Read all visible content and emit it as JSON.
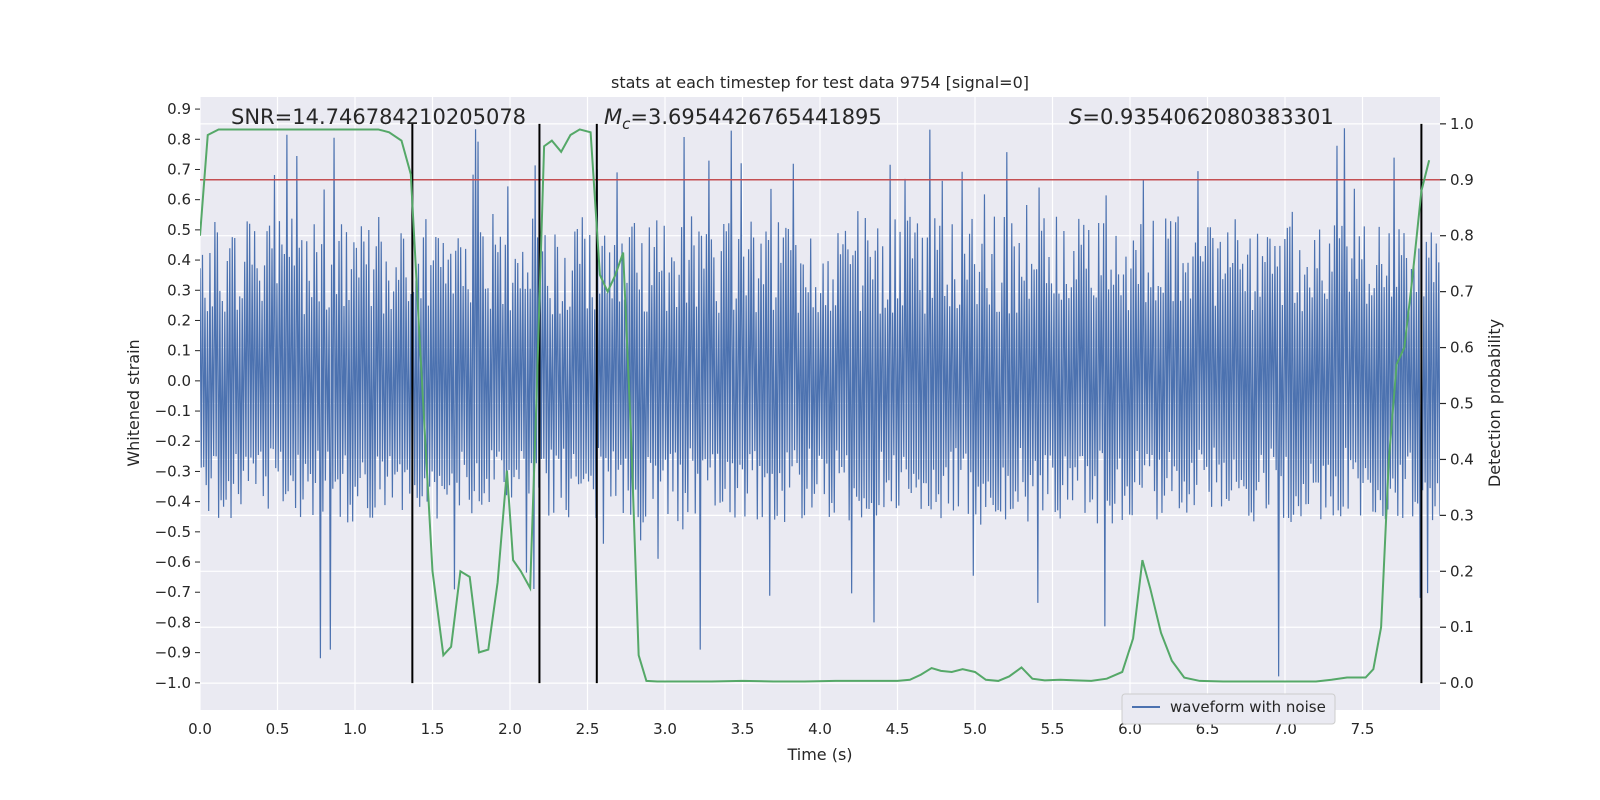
{
  "chart_data": {
    "type": "line",
    "title": "stats at each timestep for test data 9754 [signal=0]",
    "xlabel": "Time (s)",
    "ylabel": "Whitened strain",
    "y2label": "Detection probability",
    "xlim": [
      0.0,
      8.0
    ],
    "ylim": [
      -1.09,
      0.94
    ],
    "y2lim": [
      -0.048,
      1.048
    ],
    "xticks": [
      0.0,
      0.5,
      1.0,
      1.5,
      2.0,
      2.5,
      3.0,
      3.5,
      4.0,
      4.5,
      5.0,
      5.5,
      6.0,
      6.5,
      7.0,
      7.5
    ],
    "yticks": [
      0.9,
      0.8,
      0.7,
      0.6,
      0.5,
      0.4,
      0.3,
      0.2,
      0.1,
      0.0,
      -0.1,
      -0.2,
      -0.3,
      -0.4,
      -0.5,
      -0.6,
      -0.7,
      -0.8,
      -0.9,
      -1.0
    ],
    "y2ticks": [
      1.0,
      0.9,
      0.8,
      0.7,
      0.6,
      0.5,
      0.4,
      0.3,
      0.2,
      0.1,
      0.0
    ],
    "grid": true,
    "legend": {
      "position": "bottom-right",
      "entries": [
        "waveform with noise"
      ]
    },
    "annotations": {
      "snr": "SNR=14.746784210205078",
      "mc_symbol": "M",
      "mc_sub": "c",
      "mc_value": "=3.6954426765441895",
      "s_symbol": "S",
      "s_value": "=0.9354062080383301"
    },
    "threshold_line": {
      "axis": "y2",
      "value": 0.9,
      "color": "#c44e52"
    },
    "vertical_markers": [
      1.37,
      2.19,
      2.56,
      7.88
    ],
    "waveform": {
      "name": "waveform with noise",
      "color": "#4c72b0",
      "samples": 1000,
      "typical_range": [
        -0.47,
        0.55
      ],
      "extreme_range": [
        -1.0,
        0.84
      ]
    },
    "probability_series": {
      "axis": "y2",
      "color": "#55a868",
      "x": [
        0.0,
        0.05,
        0.12,
        0.2,
        0.4,
        0.6,
        0.8,
        1.0,
        1.15,
        1.22,
        1.3,
        1.36,
        1.42,
        1.5,
        1.57,
        1.62,
        1.68,
        1.74,
        1.8,
        1.86,
        1.92,
        1.98,
        2.02,
        2.07,
        2.13,
        2.17,
        2.22,
        2.27,
        2.33,
        2.39,
        2.45,
        2.52,
        2.58,
        2.63,
        2.68,
        2.73,
        2.78,
        2.83,
        2.88,
        2.95,
        3.1,
        3.3,
        3.5,
        3.7,
        3.9,
        4.1,
        4.3,
        4.5,
        4.58,
        4.65,
        4.72,
        4.78,
        4.85,
        4.92,
        5.0,
        5.07,
        5.15,
        5.22,
        5.3,
        5.37,
        5.45,
        5.55,
        5.65,
        5.75,
        5.85,
        5.95,
        6.02,
        6.08,
        6.13,
        6.2,
        6.27,
        6.35,
        6.45,
        6.6,
        6.8,
        7.0,
        7.2,
        7.3,
        7.4,
        7.47,
        7.52,
        7.57,
        7.62,
        7.67,
        7.72,
        7.77,
        7.82,
        7.88,
        7.93
      ],
      "y": [
        0.8,
        0.98,
        0.99,
        0.99,
        0.99,
        0.99,
        0.99,
        0.99,
        0.99,
        0.985,
        0.97,
        0.91,
        0.6,
        0.2,
        0.05,
        0.065,
        0.2,
        0.19,
        0.055,
        0.06,
        0.18,
        0.38,
        0.22,
        0.2,
        0.17,
        0.5,
        0.96,
        0.97,
        0.95,
        0.98,
        0.99,
        0.985,
        0.73,
        0.7,
        0.73,
        0.77,
        0.45,
        0.05,
        0.004,
        0.003,
        0.003,
        0.003,
        0.004,
        0.003,
        0.003,
        0.004,
        0.004,
        0.004,
        0.006,
        0.015,
        0.027,
        0.022,
        0.02,
        0.025,
        0.02,
        0.006,
        0.004,
        0.012,
        0.028,
        0.008,
        0.005,
        0.006,
        0.005,
        0.004,
        0.008,
        0.02,
        0.08,
        0.22,
        0.17,
        0.09,
        0.04,
        0.01,
        0.004,
        0.003,
        0.003,
        0.003,
        0.003,
        0.006,
        0.01,
        0.01,
        0.01,
        0.025,
        0.1,
        0.4,
        0.57,
        0.6,
        0.72,
        0.88,
        0.935
      ]
    }
  }
}
